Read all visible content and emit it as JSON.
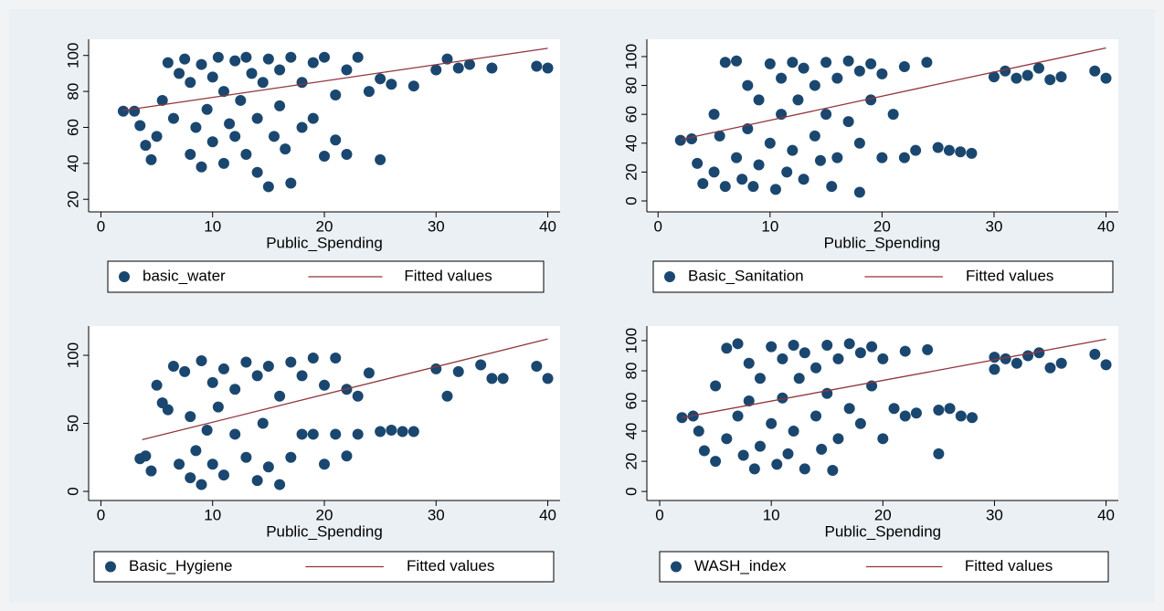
{
  "chart_data": [
    {
      "type": "scatter",
      "x_label": "Public_Spending",
      "xlim": [
        -1.1,
        41.1
      ],
      "ylim": [
        13,
        109
      ],
      "xticks": [
        0,
        10,
        20,
        30,
        40
      ],
      "yticks": [
        20,
        40,
        60,
        80,
        100
      ],
      "series": [
        {
          "name": "basic_water",
          "color": "#1a476f",
          "type": "scatter",
          "x": [
            2,
            3,
            3.5,
            4,
            4.5,
            5,
            5.5,
            6,
            6.5,
            7,
            7.5,
            8,
            8,
            8.5,
            9,
            9,
            9.5,
            10,
            10,
            10.5,
            11,
            11,
            11.5,
            12,
            12,
            12.5,
            13,
            13,
            13.5,
            14,
            14,
            14.5,
            15,
            15,
            15.5,
            16,
            16,
            16.5,
            17,
            17,
            18,
            18,
            19,
            19,
            20,
            20,
            21,
            21,
            22,
            22,
            23,
            24,
            25,
            25,
            26,
            28,
            30,
            31,
            32,
            33,
            35,
            39,
            40
          ],
          "values": [
            69,
            69,
            61,
            50,
            42,
            55,
            75,
            96,
            65,
            90,
            98,
            85,
            45,
            60,
            38,
            95,
            70,
            88,
            52,
            99,
            80,
            40,
            62,
            97,
            55,
            75,
            99,
            45,
            90,
            35,
            65,
            85,
            98,
            27,
            55,
            92,
            72,
            48,
            99,
            29,
            85,
            60,
            96,
            65,
            99,
            44,
            78,
            53,
            92,
            45,
            99,
            80,
            42,
            87,
            84,
            83,
            92,
            98,
            93,
            95,
            93,
            94,
            93
          ]
        },
        {
          "name": "Fitted values",
          "color": "#90353b",
          "type": "line",
          "x": [
            2,
            40
          ],
          "values": [
            69.4,
            104
          ]
        }
      ]
    },
    {
      "type": "scatter",
      "x_label": "Public_Spending",
      "xlim": [
        -1,
        41.1
      ],
      "ylim": [
        -7.6,
        112
      ],
      "xticks": [
        0,
        10,
        20,
        30,
        40
      ],
      "yticks": [
        0,
        20,
        40,
        60,
        80,
        100
      ],
      "series": [
        {
          "name": "Basic_Sanitation",
          "color": "#1a476f",
          "type": "scatter",
          "x": [
            2,
            3,
            3.5,
            4,
            5,
            5,
            5.5,
            6,
            6,
            7,
            7,
            7.5,
            8,
            8,
            8.5,
            9,
            9,
            10,
            10,
            10.5,
            11,
            11,
            11.5,
            12,
            12,
            12.5,
            13,
            13,
            14,
            14,
            14.5,
            15,
            15,
            15.5,
            16,
            16,
            17,
            17,
            18,
            18,
            18,
            19,
            19,
            20,
            20,
            21,
            22,
            22,
            23,
            24,
            25,
            26,
            27,
            28,
            30,
            31,
            32,
            33,
            34,
            35,
            36,
            39,
            40
          ],
          "values": [
            42,
            43,
            26,
            12,
            20,
            60,
            45,
            96,
            10,
            97,
            30,
            15,
            80,
            50,
            10,
            70,
            25,
            95,
            40,
            8,
            85,
            60,
            20,
            96,
            35,
            70,
            92,
            15,
            80,
            45,
            28,
            96,
            60,
            10,
            85,
            30,
            97,
            55,
            6,
            90,
            40,
            95,
            70,
            88,
            30,
            60,
            93,
            30,
            35,
            96,
            37,
            35,
            34,
            33,
            86,
            90,
            85,
            87,
            92,
            84,
            86,
            90,
            85
          ]
        },
        {
          "name": "Fitted values",
          "color": "#90353b",
          "type": "line",
          "x": [
            2,
            40
          ],
          "values": [
            42.5,
            106
          ]
        }
      ]
    },
    {
      "type": "scatter",
      "x_label": "Public_Spending",
      "xlim": [
        -1.1,
        41.1
      ],
      "ylim": [
        -6.7,
        121.5
      ],
      "xticks": [
        0,
        10,
        20,
        30,
        40
      ],
      "yticks": [
        0,
        50,
        100
      ],
      "series": [
        {
          "name": "Basic_Hygiene",
          "color": "#1a476f",
          "type": "scatter",
          "x": [
            3.5,
            4,
            4.5,
            5,
            5.5,
            6,
            6.5,
            7,
            7.5,
            8,
            8,
            8.5,
            9,
            9,
            9.5,
            10,
            10,
            10.5,
            11,
            11,
            12,
            12,
            13,
            13,
            14,
            14,
            14.5,
            15,
            15,
            16,
            16,
            17,
            17,
            18,
            18,
            19,
            19,
            20,
            20,
            21,
            21,
            22,
            22,
            23,
            23,
            24,
            25,
            26,
            27,
            28,
            30,
            31,
            32,
            34,
            35,
            36,
            39,
            40
          ],
          "values": [
            24,
            26,
            15,
            78,
            65,
            60,
            92,
            20,
            88,
            10,
            55,
            30,
            96,
            5,
            45,
            80,
            20,
            62,
            90,
            12,
            75,
            42,
            95,
            25,
            85,
            8,
            50,
            92,
            18,
            70,
            5,
            95,
            25,
            85,
            42,
            98,
            42,
            78,
            20,
            98,
            42,
            75,
            26,
            70,
            42,
            87,
            44,
            45,
            44,
            44,
            90,
            70,
            88,
            93,
            83,
            83,
            92,
            83
          ]
        },
        {
          "name": "Fitted values",
          "color": "#90353b",
          "type": "line",
          "x": [
            3.7,
            40
          ],
          "values": [
            38,
            112
          ]
        }
      ]
    },
    {
      "type": "scatter",
      "x_label": "Public_Spending",
      "xlim": [
        -1.15,
        41.1
      ],
      "ylim": [
        -6,
        109.7
      ],
      "xticks": [
        0,
        10,
        20,
        30,
        40
      ],
      "yticks": [
        0,
        20,
        40,
        60,
        80,
        100
      ],
      "series": [
        {
          "name": "WASH_index",
          "color": "#1a476f",
          "type": "scatter",
          "x": [
            2,
            3,
            3.5,
            4,
            5,
            5,
            6,
            6,
            7,
            7,
            7.5,
            8,
            8,
            8.5,
            9,
            9,
            10,
            10,
            10.5,
            11,
            11,
            11.5,
            12,
            12,
            12.5,
            13,
            13,
            14,
            14,
            14.5,
            15,
            15,
            15.5,
            16,
            16,
            17,
            17,
            18,
            18,
            19,
            19,
            20,
            20,
            21,
            22,
            22,
            23,
            24,
            25,
            25,
            26,
            27,
            28,
            30,
            30,
            31,
            32,
            33,
            34,
            35,
            36,
            39,
            40
          ],
          "values": [
            49,
            50,
            40,
            27,
            70,
            20,
            95,
            35,
            98,
            50,
            24,
            85,
            60,
            15,
            75,
            30,
            96,
            45,
            18,
            88,
            62,
            25,
            97,
            40,
            75,
            92,
            15,
            82,
            50,
            28,
            97,
            65,
            14,
            88,
            35,
            98,
            55,
            92,
            45,
            96,
            70,
            88,
            35,
            55,
            93,
            50,
            52,
            94,
            25,
            54,
            55,
            50,
            49,
            81,
            89,
            88,
            85,
            90,
            92,
            82,
            85,
            91,
            84
          ]
        },
        {
          "name": "Fitted values",
          "color": "#90353b",
          "type": "line",
          "x": [
            2,
            40
          ],
          "values": [
            49,
            101
          ]
        }
      ]
    }
  ]
}
